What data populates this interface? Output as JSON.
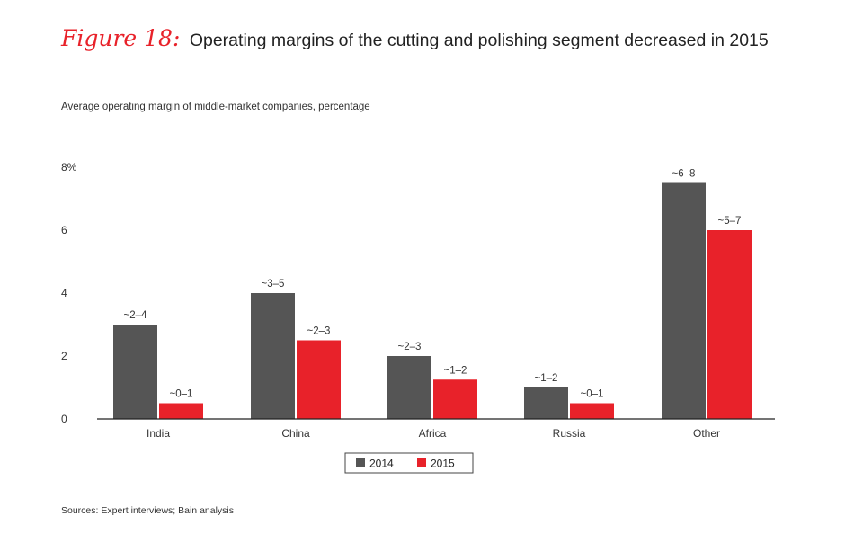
{
  "figure_label": "Figure 18:",
  "figure_title": "Operating margins of the cutting and polishing segment decreased in 2015",
  "subtitle": "Average operating margin of middle-market companies, percentage",
  "sources": "Sources: Expert interviews; Bain analysis",
  "colors": {
    "2014": "#555555",
    "2015": "#e8222a",
    "accent": "#e8222a"
  },
  "chart_data": {
    "type": "bar",
    "categories": [
      "India",
      "China",
      "Africa",
      "Russia",
      "Other"
    ],
    "series": [
      {
        "name": "2014",
        "values": [
          3.0,
          4.0,
          2.0,
          1.0,
          7.5
        ],
        "labels": [
          "~2–4",
          "~3–5",
          "~2–3",
          "~1–2",
          "~6–8"
        ]
      },
      {
        "name": "2015",
        "values": [
          0.5,
          2.5,
          1.25,
          0.5,
          6.0
        ],
        "labels": [
          "~0–1",
          "~2–3",
          "~1–2",
          "~0–1",
          "~5–7"
        ]
      }
    ],
    "ylim": [
      0,
      8
    ],
    "yticks": [
      "0",
      "2",
      "4",
      "6",
      "8%"
    ],
    "ytick_values": [
      0,
      2,
      4,
      6,
      8
    ],
    "grid": false,
    "legend": "bottom-center"
  }
}
